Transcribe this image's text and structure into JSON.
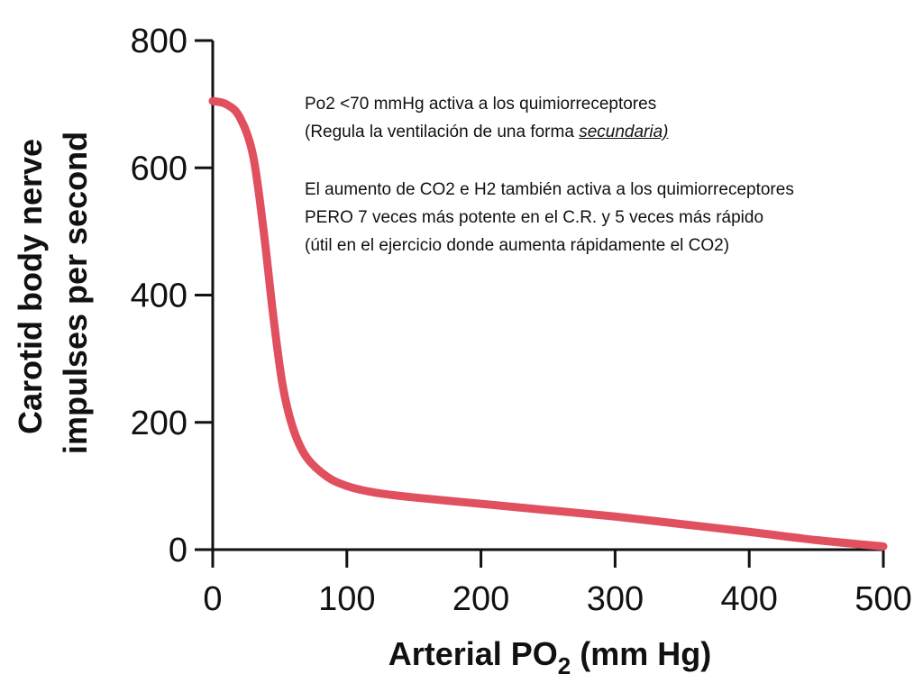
{
  "chart_data": {
    "type": "line",
    "title": "",
    "xlabel_main": "Arterial PO",
    "xlabel_sub": "2",
    "xlabel_unit": " (mm Hg)",
    "ylabel_line1": "Carotid body nerve",
    "ylabel_line2": "impulses per second",
    "xlim": [
      0,
      500
    ],
    "ylim": [
      0,
      800
    ],
    "x_ticks": [
      "0",
      "100",
      "200",
      "300",
      "400",
      "500"
    ],
    "y_ticks": [
      "0",
      "200",
      "400",
      "600",
      "800"
    ],
    "grid": false,
    "legend": "none",
    "series": [
      {
        "color": "#e0505f",
        "x": [
          0,
          10,
          20,
          30,
          38,
          45,
          52,
          60,
          70,
          85,
          100,
          120,
          150,
          200,
          250,
          300,
          350,
          400,
          450,
          500
        ],
        "y": [
          705,
          700,
          680,
          620,
          500,
          370,
          260,
          190,
          145,
          115,
          100,
          90,
          82,
          72,
          62,
          52,
          40,
          28,
          15,
          5
        ]
      }
    ]
  },
  "annotations": {
    "block1": {
      "line1": "Po2 <70 mmHg  activa a los quimiorreceptores",
      "line2_pre": "(Regula la ventilación de una forma ",
      "line2_emph": "secundaria)"
    },
    "block2": {
      "line1": "El aumento de CO2 e H2 también activa a los quimiorreceptores",
      "line2": "PERO 7 veces más potente en el C.R. y 5 veces más rápido",
      "line3": "(útil en el ejercicio donde aumenta rápidamente el CO2)"
    }
  }
}
